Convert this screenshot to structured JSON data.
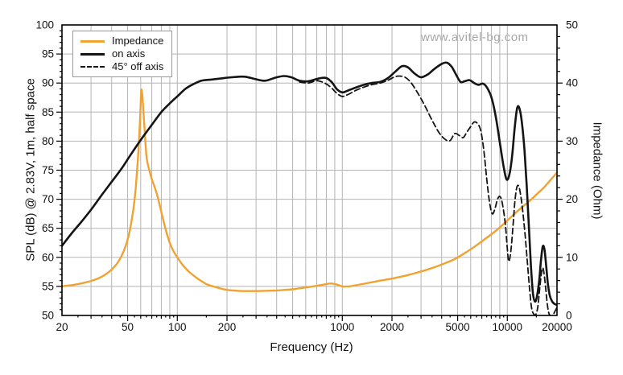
{
  "watermark": "www.avitel-bg.com",
  "legend": [
    {
      "label": "Impedance",
      "line": "solid",
      "color": "#f0a232"
    },
    {
      "label": "on axis",
      "line": "solid",
      "color": "#141414"
    },
    {
      "label": "45° off axis",
      "line": "dashed",
      "color": "#141414"
    }
  ],
  "colors": {
    "impedance_orange": "#f0a232",
    "curve_black": "#141414",
    "grid_gray": "#b5b5b5",
    "watermark_gray": "#a8a8a8"
  },
  "chart_data": {
    "type": "line",
    "grid": true,
    "legend_position": "top-left",
    "x_axis": {
      "label": "Frequency (Hz)",
      "scale": "log",
      "min": 20,
      "max": 20000,
      "labeled_ticks": [
        20,
        50,
        100,
        200,
        1000,
        2000,
        5000,
        10000,
        20000
      ]
    },
    "y_left": {
      "label": "SPL (dB) @ 2.83V, 1m, half space",
      "min": 50,
      "max": 100,
      "ticks": [
        50,
        55,
        60,
        65,
        70,
        75,
        80,
        85,
        90,
        95,
        100
      ]
    },
    "y_right": {
      "label": "Impedance (Ohm)",
      "min": 0,
      "max": 50,
      "ticks": [
        0,
        10,
        20,
        30,
        40,
        50
      ]
    },
    "series": [
      {
        "name": "Impedance",
        "axis": "right",
        "unit": "Ohm",
        "color": "#f0a232",
        "line": "solid",
        "points": [
          [
            20,
            5.0
          ],
          [
            24,
            5.3
          ],
          [
            28,
            5.7
          ],
          [
            32,
            6.2
          ],
          [
            36,
            6.9
          ],
          [
            40,
            7.9
          ],
          [
            44,
            9.3
          ],
          [
            48,
            11.5
          ],
          [
            51,
            14
          ],
          [
            54,
            18
          ],
          [
            56,
            22
          ],
          [
            58,
            28
          ],
          [
            59.5,
            34
          ],
          [
            60.5,
            38.7
          ],
          [
            61.5,
            37.5
          ],
          [
            63,
            33
          ],
          [
            65,
            27.5
          ],
          [
            67,
            25.5
          ],
          [
            70,
            23.5
          ],
          [
            75,
            21
          ],
          [
            80,
            17.8
          ],
          [
            85,
            14.8
          ],
          [
            90,
            12.5
          ],
          [
            95,
            11
          ],
          [
            100,
            10
          ],
          [
            107,
            8.8
          ],
          [
            115,
            7.8
          ],
          [
            125,
            6.9
          ],
          [
            135,
            6.2
          ],
          [
            150,
            5.4
          ],
          [
            165,
            5.0
          ],
          [
            180,
            4.7
          ],
          [
            200,
            4.4
          ],
          [
            230,
            4.25
          ],
          [
            260,
            4.2
          ],
          [
            300,
            4.2
          ],
          [
            350,
            4.25
          ],
          [
            400,
            4.3
          ],
          [
            450,
            4.4
          ],
          [
            500,
            4.5
          ],
          [
            560,
            4.7
          ],
          [
            630,
            4.9
          ],
          [
            700,
            5.1
          ],
          [
            780,
            5.35
          ],
          [
            850,
            5.5
          ],
          [
            920,
            5.35
          ],
          [
            1000,
            5.0
          ],
          [
            1100,
            5.0
          ],
          [
            1200,
            5.2
          ],
          [
            1350,
            5.45
          ],
          [
            1500,
            5.7
          ],
          [
            1700,
            6.0
          ],
          [
            2000,
            6.35
          ],
          [
            2300,
            6.7
          ],
          [
            2700,
            7.2
          ],
          [
            3200,
            7.8
          ],
          [
            3700,
            8.4
          ],
          [
            4200,
            9.0
          ],
          [
            4800,
            9.7
          ],
          [
            5500,
            10.7
          ],
          [
            6300,
            11.8
          ],
          [
            7200,
            13.0
          ],
          [
            8200,
            14.2
          ],
          [
            9300,
            15.5
          ],
          [
            10500,
            16.9
          ],
          [
            12000,
            18.4
          ],
          [
            13500,
            19.6
          ],
          [
            15000,
            20.8
          ],
          [
            16500,
            21.9
          ],
          [
            18000,
            23.1
          ],
          [
            20000,
            24.6
          ]
        ]
      },
      {
        "name": "on axis",
        "axis": "left",
        "unit": "dB",
        "color": "#141414",
        "line": "solid",
        "points": [
          [
            20,
            62.0
          ],
          [
            23,
            64.2
          ],
          [
            26,
            66.0
          ],
          [
            30,
            68.2
          ],
          [
            35,
            70.8
          ],
          [
            40,
            73.0
          ],
          [
            46,
            75.3
          ],
          [
            52,
            77.6
          ],
          [
            60,
            80.2
          ],
          [
            70,
            82.8
          ],
          [
            80,
            85.0
          ],
          [
            90,
            86.5
          ],
          [
            100,
            87.7
          ],
          [
            112,
            89.0
          ],
          [
            125,
            89.8
          ],
          [
            140,
            90.4
          ],
          [
            160,
            90.6
          ],
          [
            185,
            90.8
          ],
          [
            215,
            91.0
          ],
          [
            255,
            91.1
          ],
          [
            295,
            90.7
          ],
          [
            340,
            90.4
          ],
          [
            390,
            90.9
          ],
          [
            440,
            91.2
          ],
          [
            490,
            91.0
          ],
          [
            550,
            90.4
          ],
          [
            620,
            90.3
          ],
          [
            700,
            90.7
          ],
          [
            790,
            90.9
          ],
          [
            860,
            90.2
          ],
          [
            930,
            88.9
          ],
          [
            1000,
            88.4
          ],
          [
            1080,
            88.7
          ],
          [
            1200,
            89.2
          ],
          [
            1350,
            89.7
          ],
          [
            1500,
            90.0
          ],
          [
            1700,
            90.2
          ],
          [
            1900,
            90.9
          ],
          [
            2100,
            92.0
          ],
          [
            2300,
            92.9
          ],
          [
            2500,
            92.7
          ],
          [
            2750,
            91.6
          ],
          [
            3000,
            91.0
          ],
          [
            3300,
            91.5
          ],
          [
            3600,
            92.4
          ],
          [
            4000,
            93.3
          ],
          [
            4300,
            93.5
          ],
          [
            4600,
            92.8
          ],
          [
            4900,
            91.4
          ],
          [
            5200,
            90.2
          ],
          [
            5500,
            90.3
          ],
          [
            5900,
            90.5
          ],
          [
            6300,
            90.0
          ],
          [
            6700,
            89.7
          ],
          [
            7100,
            89.9
          ],
          [
            7500,
            89.3
          ],
          [
            8000,
            87.6
          ],
          [
            8500,
            84.3
          ],
          [
            9000,
            79.8
          ],
          [
            9500,
            75.6
          ],
          [
            9900,
            73.4
          ],
          [
            10300,
            74.3
          ],
          [
            10700,
            77.5
          ],
          [
            11100,
            82.5
          ],
          [
            11500,
            85.8
          ],
          [
            11900,
            85.4
          ],
          [
            12300,
            82.8
          ],
          [
            12700,
            78.5
          ],
          [
            13100,
            72.5
          ],
          [
            13500,
            65.5
          ],
          [
            13900,
            58.5
          ],
          [
            14300,
            53.8
          ],
          [
            14700,
            52.4
          ],
          [
            15100,
            53.2
          ],
          [
            15600,
            56.0
          ],
          [
            16000,
            59.5
          ],
          [
            16400,
            61.9
          ],
          [
            16800,
            61.3
          ],
          [
            17200,
            58.5
          ],
          [
            17600,
            55.5
          ],
          [
            18100,
            53.4
          ],
          [
            18700,
            52.4
          ],
          [
            19300,
            52.0
          ],
          [
            20000,
            51.8
          ]
        ]
      },
      {
        "name": "45° off axis",
        "axis": "left",
        "unit": "dB",
        "color": "#141414",
        "line": "dashed",
        "points": [
          [
            550,
            90.2
          ],
          [
            620,
            90.0
          ],
          [
            700,
            90.4
          ],
          [
            780,
            90.0
          ],
          [
            850,
            89.3
          ],
          [
            930,
            88.2
          ],
          [
            1000,
            87.7
          ],
          [
            1080,
            88.0
          ],
          [
            1200,
            88.7
          ],
          [
            1350,
            89.3
          ],
          [
            1500,
            89.7
          ],
          [
            1700,
            90.0
          ],
          [
            1900,
            90.5
          ],
          [
            2050,
            91.0
          ],
          [
            2200,
            91.2
          ],
          [
            2400,
            91.0
          ],
          [
            2600,
            90.1
          ],
          [
            2850,
            88.4
          ],
          [
            3150,
            86.2
          ],
          [
            3500,
            83.6
          ],
          [
            3850,
            81.5
          ],
          [
            4200,
            80.3
          ],
          [
            4500,
            80.1
          ],
          [
            4800,
            81.3
          ],
          [
            5100,
            81.0
          ],
          [
            5400,
            80.6
          ],
          [
            5700,
            81.6
          ],
          [
            6000,
            82.5
          ],
          [
            6300,
            83.3
          ],
          [
            6600,
            83.0
          ],
          [
            6900,
            81.8
          ],
          [
            7200,
            78.5
          ],
          [
            7500,
            73.5
          ],
          [
            7800,
            69.5
          ],
          [
            8100,
            67.5
          ],
          [
            8400,
            68.3
          ],
          [
            8700,
            69.9
          ],
          [
            9000,
            70.5
          ],
          [
            9300,
            69.5
          ],
          [
            9700,
            66.0
          ],
          [
            10000,
            61.5
          ],
          [
            10200,
            59.3
          ],
          [
            10500,
            61.0
          ],
          [
            10800,
            65.0
          ],
          [
            11100,
            69.5
          ],
          [
            11400,
            72.0
          ],
          [
            11700,
            72.3
          ],
          [
            12000,
            71.0
          ],
          [
            12400,
            68.0
          ],
          [
            12800,
            64.0
          ],
          [
            13200,
            59.5
          ],
          [
            13600,
            55.0
          ],
          [
            14000,
            51.5
          ],
          [
            14400,
            50.3
          ],
          [
            14900,
            50.2
          ],
          [
            15300,
            51.5
          ],
          [
            15700,
            54.5
          ],
          [
            16100,
            57.3
          ],
          [
            16400,
            58.2
          ],
          [
            16700,
            57.2
          ],
          [
            17100,
            54.5
          ],
          [
            17500,
            51.8
          ],
          [
            17900,
            50.3
          ],
          [
            18500,
            49.9
          ],
          [
            19100,
            50.3
          ],
          [
            19600,
            50.9
          ],
          [
            20000,
            51.4
          ]
        ]
      }
    ]
  }
}
